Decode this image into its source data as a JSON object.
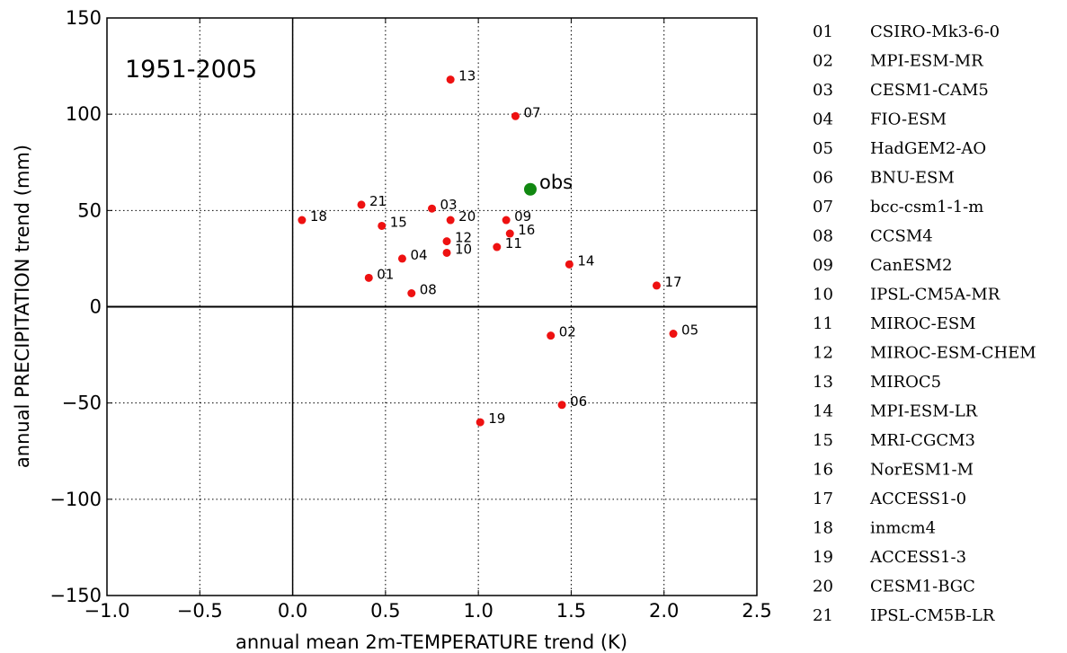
{
  "chart_data": {
    "type": "scatter",
    "title": "",
    "period_label": "1951-2005",
    "xlabel": "annual mean 2m-TEMPERATURE trend (K)",
    "ylabel": "annual PRECIPITATION trend (mm)",
    "xlim": [
      -1.0,
      2.5
    ],
    "ylim": [
      -150,
      150
    ],
    "x_ticks": [
      "−1.0",
      "−0.5",
      "0.0",
      "0.5",
      "1.0",
      "1.5",
      "2.0",
      "2.5"
    ],
    "x_tick_values": [
      -1.0,
      -0.5,
      0.0,
      0.5,
      1.0,
      1.5,
      2.0,
      2.5
    ],
    "y_ticks": [
      "−150",
      "−100",
      "−50",
      "0",
      "50",
      "100",
      "150"
    ],
    "y_tick_values": [
      -150,
      -100,
      -50,
      0,
      50,
      100,
      150
    ],
    "grid": "dotted",
    "zero_lines": true,
    "models": [
      {
        "id": "01",
        "name": "CSIRO-Mk3-6-0",
        "x": 0.41,
        "y": 15
      },
      {
        "id": "02",
        "name": "MPI-ESM-MR",
        "x": 1.39,
        "y": -15
      },
      {
        "id": "03",
        "name": "CESM1-CAM5",
        "x": 0.75,
        "y": 51
      },
      {
        "id": "04",
        "name": "FIO-ESM",
        "x": 0.59,
        "y": 25
      },
      {
        "id": "05",
        "name": "HadGEM2-AO",
        "x": 2.05,
        "y": -14
      },
      {
        "id": "06",
        "name": "BNU-ESM",
        "x": 1.45,
        "y": -51
      },
      {
        "id": "07",
        "name": "bcc-csm1-1-m",
        "x": 1.2,
        "y": 99
      },
      {
        "id": "08",
        "name": "CCSM4",
        "x": 0.64,
        "y": 7
      },
      {
        "id": "09",
        "name": "CanESM2",
        "x": 1.15,
        "y": 45
      },
      {
        "id": "10",
        "name": "IPSL-CM5A-MR",
        "x": 0.83,
        "y": 28
      },
      {
        "id": "11",
        "name": "MIROC-ESM",
        "x": 1.1,
        "y": 31
      },
      {
        "id": "12",
        "name": "MIROC-ESM-CHEM",
        "x": 0.83,
        "y": 34
      },
      {
        "id": "13",
        "name": "MIROC5",
        "x": 0.85,
        "y": 118
      },
      {
        "id": "14",
        "name": "MPI-ESM-LR",
        "x": 1.49,
        "y": 22
      },
      {
        "id": "15",
        "name": "MRI-CGCM3",
        "x": 0.48,
        "y": 42
      },
      {
        "id": "16",
        "name": "NorESM1-M",
        "x": 1.17,
        "y": 38
      },
      {
        "id": "17",
        "name": "ACCESS1-0",
        "x": 1.96,
        "y": 11
      },
      {
        "id": "18",
        "name": "inmcm4",
        "x": 0.05,
        "y": 45
      },
      {
        "id": "19",
        "name": "ACCESS1-3",
        "x": 1.01,
        "y": -60
      },
      {
        "id": "20",
        "name": "CESM1-BGC",
        "x": 0.85,
        "y": 45
      },
      {
        "id": "21",
        "name": "IPSL-CM5B-LR",
        "x": 0.37,
        "y": 53
      }
    ],
    "obs": {
      "label": "obs",
      "x": 1.28,
      "y": 61
    },
    "colors": {
      "models": "#ee1111",
      "obs": "#118811"
    }
  }
}
